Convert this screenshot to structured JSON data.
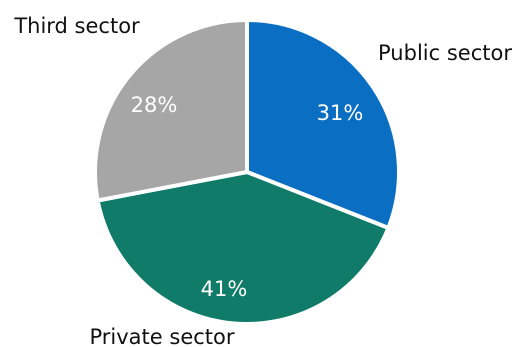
{
  "chart_data": {
    "type": "pie",
    "title": "",
    "series": [
      {
        "values": [
          31,
          41,
          28
        ],
        "labels": [
          "Public sector",
          "Private sector",
          "Third sector"
        ],
        "display_values": [
          "31%",
          "41%",
          "28%"
        ],
        "colors": [
          "#0a6fc2",
          "#0f7b68",
          "#a6a6a6"
        ]
      }
    ],
    "legend": "none"
  }
}
